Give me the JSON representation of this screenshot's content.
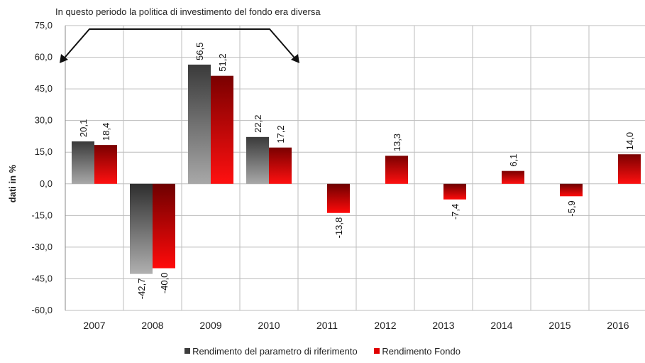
{
  "chart_data": {
    "type": "bar",
    "annotation": "In questo periodo la politica di investimento del fondo era diversa",
    "ylabel": "dati in %",
    "xlabel": "",
    "ylim": [
      -60,
      75
    ],
    "yticks": [
      "75,0",
      "60,0",
      "45,0",
      "30,0",
      "15,0",
      "0,0",
      "-15,0",
      "-30,0",
      "-45,0",
      "-60,0"
    ],
    "ytick_values": [
      75,
      60,
      45,
      30,
      15,
      0,
      -15,
      -30,
      -45,
      -60
    ],
    "categories": [
      "2007",
      "2008",
      "2009",
      "2010",
      "2011",
      "2012",
      "2013",
      "2014",
      "2015",
      "2016"
    ],
    "series": [
      {
        "name": "Rendimento del parametro di riferimento",
        "values": [
          20.1,
          -42.7,
          56.5,
          22.2,
          null,
          null,
          null,
          null,
          null,
          null
        ],
        "labels": [
          "20,1",
          "-42,7",
          "56,5",
          "22,2",
          "",
          "",
          "",
          "",
          "",
          ""
        ],
        "color": "#3c3c3c"
      },
      {
        "name": "Rendimento Fondo",
        "values": [
          18.4,
          -40.0,
          51.2,
          17.2,
          -13.8,
          13.3,
          -7.4,
          6.1,
          -5.9,
          14.0
        ],
        "labels": [
          "18,4",
          "-40,0",
          "51,2",
          "17,2",
          "-13,8",
          "13,3",
          "-7,4",
          "6,1",
          "-5,9",
          "14,0"
        ],
        "color": "#e00000"
      }
    ],
    "grid": true,
    "legend_position": "bottom"
  }
}
